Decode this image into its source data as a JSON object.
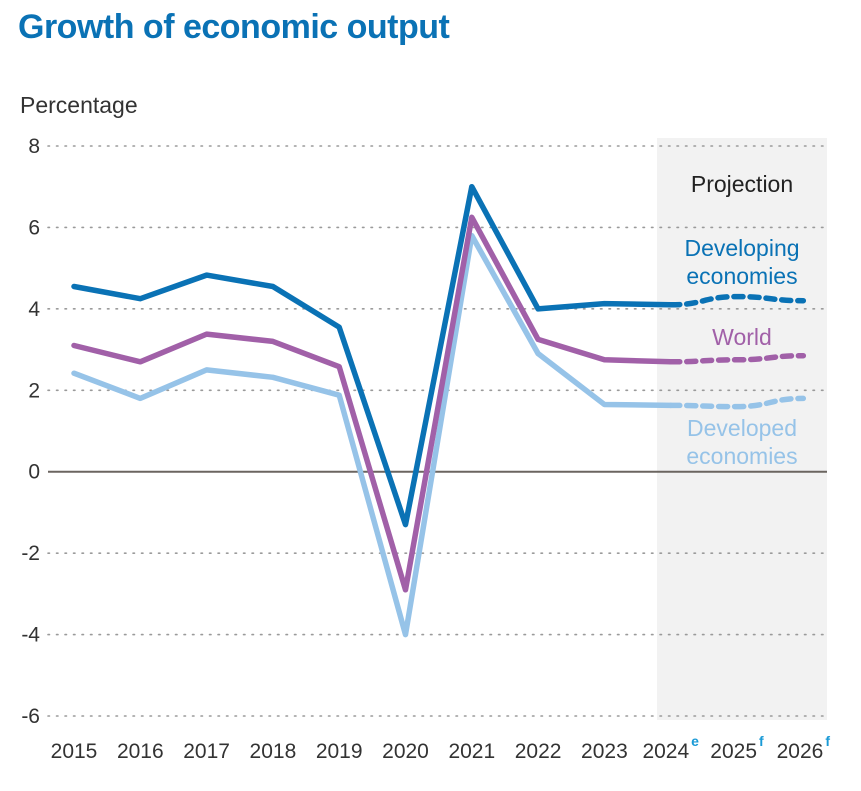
{
  "chart_data": {
    "type": "line",
    "title": "Growth of economic output",
    "ylabel": "Percentage",
    "xlabel": "",
    "ylim": [
      -6,
      8
    ],
    "yticks": [
      "8",
      "6",
      "4",
      "2",
      "0",
      "-2",
      "-4",
      "-6"
    ],
    "categories": [
      {
        "year": "2015",
        "sup": ""
      },
      {
        "year": "2016",
        "sup": ""
      },
      {
        "year": "2017",
        "sup": ""
      },
      {
        "year": "2018",
        "sup": ""
      },
      {
        "year": "2019",
        "sup": ""
      },
      {
        "year": "2020",
        "sup": ""
      },
      {
        "year": "2021",
        "sup": ""
      },
      {
        "year": "2022",
        "sup": ""
      },
      {
        "year": "2023",
        "sup": ""
      },
      {
        "year": "2024",
        "sup": "e"
      },
      {
        "year": "2025",
        "sup": "f"
      },
      {
        "year": "2026",
        "sup": "f"
      }
    ],
    "projection_label": "Projection",
    "projection_start_index": 9,
    "series": [
      {
        "name": "Developing economies",
        "label_lines": [
          "Developing",
          "economies"
        ],
        "color": "#0a72b5",
        "values": [
          4.55,
          4.25,
          4.83,
          4.55,
          3.55,
          -1.3,
          7.0,
          4.0,
          4.13,
          4.1,
          4.3,
          4.2
        ]
      },
      {
        "name": "World",
        "label_lines": [
          "World"
        ],
        "color": "#a160a8",
        "values": [
          3.1,
          2.7,
          3.38,
          3.2,
          2.58,
          -2.9,
          6.25,
          3.25,
          2.75,
          2.7,
          2.75,
          2.85
        ]
      },
      {
        "name": "Developed economies",
        "label_lines": [
          "Developed",
          "economies"
        ],
        "color": "#96c3e8",
        "values": [
          2.42,
          1.8,
          2.5,
          2.32,
          1.88,
          -4.0,
          5.8,
          2.9,
          1.65,
          1.63,
          1.6,
          1.8
        ]
      }
    ]
  }
}
